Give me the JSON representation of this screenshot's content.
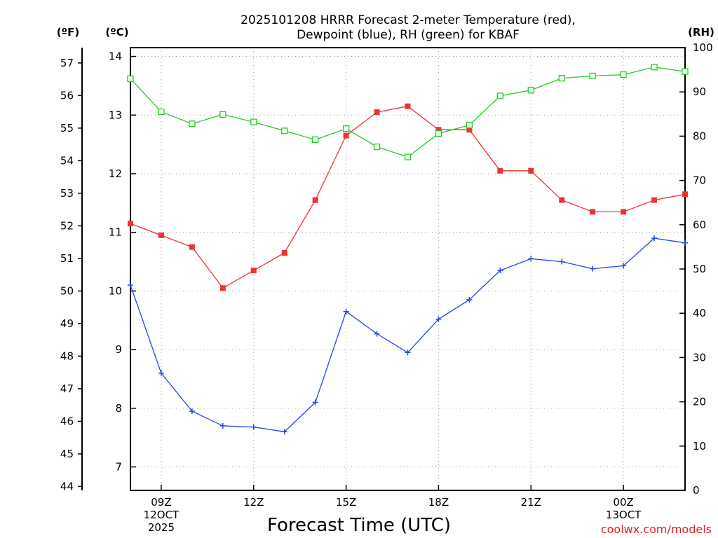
{
  "chart_data": {
    "type": "line",
    "title": "2025101208 HRRR Forecast 2-meter Temperature (red), Dewpoint (blue), RH (green) for KBAF",
    "title_lines": [
      "2025101208 HRRR Forecast 2-meter Temperature (red),",
      "Dewpoint (blue), RH (green) for KBAF"
    ],
    "xlabel": "Forecast Time (UTC)",
    "credit": "coolwx.com/models",
    "units": {
      "fahrenheit": "(ºF)",
      "celsius": "(ºC)",
      "rh": "(RH)"
    },
    "x": [
      8,
      9,
      10,
      11,
      12,
      13,
      14,
      15,
      16,
      17,
      18,
      19,
      20,
      21,
      22,
      23,
      24,
      25,
      26
    ],
    "xlim": [
      8,
      26
    ],
    "x_ticks": [
      {
        "x": 9,
        "lines": [
          "09Z",
          "12OCT",
          "2025"
        ]
      },
      {
        "x": 12,
        "lines": [
          "12Z"
        ]
      },
      {
        "x": 15,
        "lines": [
          "15Z"
        ]
      },
      {
        "x": 18,
        "lines": [
          "18Z"
        ]
      },
      {
        "x": 21,
        "lines": [
          "21Z"
        ]
      },
      {
        "x": 24,
        "lines": [
          "00Z",
          "13OCT"
        ]
      }
    ],
    "celsius_axis": {
      "range": [
        6.6,
        14.15
      ],
      "ticks": [
        7,
        8,
        9,
        10,
        11,
        12,
        13,
        14
      ]
    },
    "fahrenheit_axis": {
      "ticks": [
        44,
        45,
        46,
        47,
        48,
        49,
        50,
        51,
        52,
        53,
        54,
        55,
        56,
        57
      ]
    },
    "rh_axis": {
      "range": [
        0,
        100
      ],
      "ticks": [
        0,
        10,
        20,
        30,
        40,
        50,
        60,
        70,
        80,
        90,
        100
      ]
    },
    "series": [
      {
        "name": "Temperature",
        "color": "#ee3333",
        "marker": "filled-square",
        "axis": "celsius",
        "values": [
          11.15,
          10.95,
          10.75,
          10.05,
          10.35,
          10.65,
          11.55,
          12.65,
          13.05,
          13.15,
          12.75,
          12.75,
          12.05,
          12.05,
          11.55,
          11.35,
          11.35,
          11.55,
          11.65
        ]
      },
      {
        "name": "Dewpoint",
        "color": "#2244ee",
        "marker": "plus",
        "axis": "celsius",
        "values": [
          10.1,
          8.6,
          7.95,
          7.7,
          7.68,
          7.6,
          8.1,
          9.65,
          9.27,
          8.95,
          9.52,
          9.85,
          10.35,
          10.55,
          10.5,
          10.38,
          10.43,
          10.9,
          10.82
        ]
      },
      {
        "name": "RH",
        "color": "#22cc22",
        "marker": "open-square",
        "axis": "rh",
        "values": [
          93,
          85.5,
          82.8,
          84.9,
          83.2,
          81.2,
          79.2,
          81.7,
          77.6,
          75.3,
          80.6,
          82.5,
          89.1,
          90.4,
          93.1,
          93.6,
          93.9,
          95.6,
          94.6
        ]
      }
    ]
  }
}
